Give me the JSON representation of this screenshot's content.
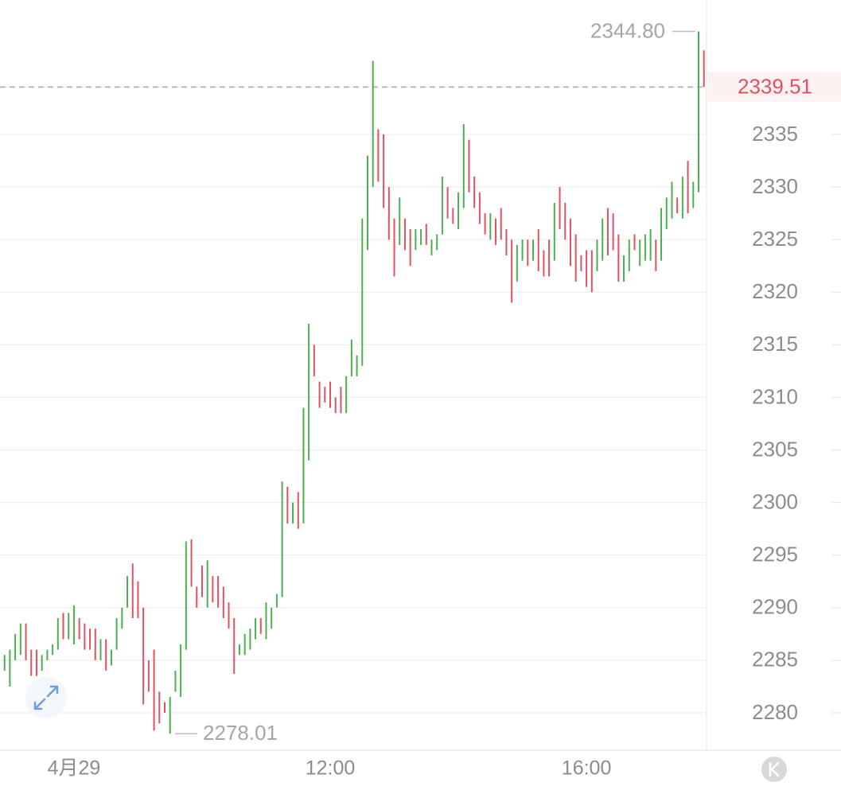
{
  "chart_data": {
    "type": "ohlc",
    "up_color": "#4caf50",
    "down_color": "#e0525f",
    "grid": true,
    "ylim": [
      2276.44,
      2347.79
    ],
    "yticks": [
      2280,
      2285,
      2290,
      2295,
      2300,
      2305,
      2310,
      2315,
      2320,
      2325,
      2330,
      2335
    ],
    "high_label": {
      "value": 2344.8,
      "label": "2344.80"
    },
    "low_label": 2278.01,
    "last_price": 2339.51,
    "categories": [
      null,
      null,
      null,
      null,
      null,
      null,
      null,
      null,
      null,
      null,
      null,
      null,
      null,
      "4月29",
      null,
      null,
      null,
      null,
      null,
      null,
      null,
      null,
      null,
      null,
      null,
      null,
      null,
      null,
      null,
      null,
      null,
      null,
      null,
      null,
      null,
      null,
      null,
      null,
      null,
      null,
      null,
      null,
      null,
      null,
      null,
      null,
      null,
      null,
      null,
      null,
      null,
      null,
      null,
      null,
      null,
      null,
      null,
      null,
      null,
      null,
      null,
      "12:00",
      null,
      null,
      null,
      null,
      null,
      null,
      null,
      null,
      null,
      null,
      null,
      null,
      null,
      null,
      null,
      null,
      null,
      null,
      null,
      null,
      null,
      null,
      null,
      null,
      null,
      null,
      null,
      null,
      null,
      null,
      null,
      null,
      null,
      null,
      null,
      null,
      null,
      null,
      null,
      null,
      null,
      null,
      null,
      null,
      null,
      null,
      null,
      "16:00",
      null,
      null,
      null,
      null,
      null,
      null,
      null,
      null,
      null,
      null,
      null,
      null,
      null,
      null,
      null,
      null,
      null,
      null,
      null,
      null,
      null,
      null
    ],
    "bars": [
      [
        2284,
        2285.5
      ],
      [
        2282.5,
        2286
      ],
      [
        2285,
        2287.5
      ],
      [
        2285.5,
        2288.5
      ],
      [
        2288.5,
        2285
      ],
      [
        2286,
        2283.5
      ],
      [
        2286,
        2283.5
      ],
      [
        2284,
        2285.5
      ],
      [
        2285,
        2286
      ],
      [
        2285.5,
        2286.5
      ],
      [
        2286,
        2289
      ],
      [
        2289.5,
        2287
      ],
      [
        2287,
        2289.5
      ],
      [
        2286.5,
        2290.2
      ],
      [
        2289,
        2287
      ],
      [
        2288.5,
        2286
      ],
      [
        2288,
        2286
      ],
      [
        2288,
        2285
      ],
      [
        2285,
        2287
      ],
      [
        2287,
        2284
      ],
      [
        2284.5,
        2286
      ],
      [
        2286,
        2289
      ],
      [
        2288,
        2290
      ],
      [
        2290,
        2293
      ],
      [
        2294.2,
        2289
      ],
      [
        2292.5,
        2289
      ],
      [
        2290,
        2280.8
      ],
      [
        2285,
        2282
      ],
      [
        2286,
        2278.3
      ],
      [
        2282,
        2279
      ],
      [
        2281,
        2280
      ],
      [
        2278.01,
        2281.5
      ],
      [
        2282,
        2284
      ],
      [
        2281.5,
        2286.5
      ],
      [
        2286,
        2296.3
      ],
      [
        2296.5,
        2292
      ],
      [
        2292,
        2290
      ],
      [
        2294,
        2291
      ],
      [
        2290,
        2294.5
      ],
      [
        2293,
        2290.5
      ],
      [
        2293,
        2290
      ],
      [
        2292,
        2289
      ],
      [
        2290.5,
        2288
      ],
      [
        2289,
        2283.7
      ],
      [
        2285.5,
        2286.5
      ],
      [
        2285.5,
        2287.5
      ],
      [
        2286,
        2288
      ],
      [
        2287,
        2289
      ],
      [
        2289,
        2287.5
      ],
      [
        2287,
        2290.5
      ],
      [
        2288,
        2290
      ],
      [
        2290,
        2291.3
      ],
      [
        2291,
        2302
      ],
      [
        2301.5,
        2298
      ],
      [
        2298,
        2300
      ],
      [
        2301,
        2297.5
      ],
      [
        2298,
        2309
      ],
      [
        2304,
        2317
      ],
      [
        2315,
        2312
      ],
      [
        2311.5,
        2309
      ],
      [
        2311,
        2309.5
      ],
      [
        2311.5,
        2309
      ],
      [
        2310,
        2308.5
      ],
      [
        2311,
        2308.5
      ],
      [
        2308.5,
        2312
      ],
      [
        2312,
        2315.5
      ],
      [
        2312,
        2314
      ],
      [
        2313,
        2327
      ],
      [
        2324,
        2333
      ],
      [
        2330,
        2342
      ],
      [
        2335.5,
        2330.5
      ],
      [
        2335,
        2328
      ],
      [
        2330,
        2325
      ],
      [
        2327,
        2321.5
      ],
      [
        2324.5,
        2329
      ],
      [
        2327,
        2324
      ],
      [
        2326,
        2322.5
      ],
      [
        2324,
        2326
      ],
      [
        2324.5,
        2326
      ],
      [
        2326.5,
        2324.5
      ],
      [
        2323.5,
        2325
      ],
      [
        2324,
        2325.5
      ],
      [
        2325.5,
        2331
      ],
      [
        2330,
        2327
      ],
      [
        2328,
        2326.5
      ],
      [
        2326,
        2329.5
      ],
      [
        2328,
        2336
      ],
      [
        2334.5,
        2329.5
      ],
      [
        2331,
        2328
      ],
      [
        2329.5,
        2326.5
      ],
      [
        2327.5,
        2325.5
      ],
      [
        2325,
        2327.5
      ],
      [
        2327,
        2324.5
      ],
      [
        2328,
        2325
      ],
      [
        2326,
        2323.5
      ],
      [
        2325,
        2319
      ],
      [
        2321,
        2324.5
      ],
      [
        2323,
        2325
      ],
      [
        2325,
        2322.5
      ],
      [
        2323,
        2325
      ],
      [
        2326,
        2322
      ],
      [
        2324,
        2321.5
      ],
      [
        2325,
        2321.5
      ],
      [
        2323,
        2328.5
      ],
      [
        2330,
        2326
      ],
      [
        2328.5,
        2325
      ],
      [
        2327,
        2322.5
      ],
      [
        2325.5,
        2321
      ],
      [
        2323.5,
        2322
      ],
      [
        2324,
        2320.5
      ],
      [
        2324,
        2320
      ],
      [
        2322,
        2325
      ],
      [
        2323,
        2327
      ],
      [
        2328,
        2323.5
      ],
      [
        2327.5,
        2324
      ],
      [
        2325.5,
        2321
      ],
      [
        2321,
        2323.5
      ],
      [
        2322,
        2325
      ],
      [
        2325.5,
        2324
      ],
      [
        2322.5,
        2325
      ],
      [
        2323,
        2325.5
      ],
      [
        2323,
        2326
      ],
      [
        2325,
        2322
      ],
      [
        2323,
        2328
      ],
      [
        2326,
        2329
      ],
      [
        2327,
        2330.5
      ],
      [
        2329,
        2327.5
      ],
      [
        2327,
        2331
      ],
      [
        2332.5,
        2327.5
      ],
      [
        2328,
        2330.5
      ],
      [
        2329.5,
        2344.8
      ],
      [
        2343,
        2339.51
      ]
    ]
  }
}
